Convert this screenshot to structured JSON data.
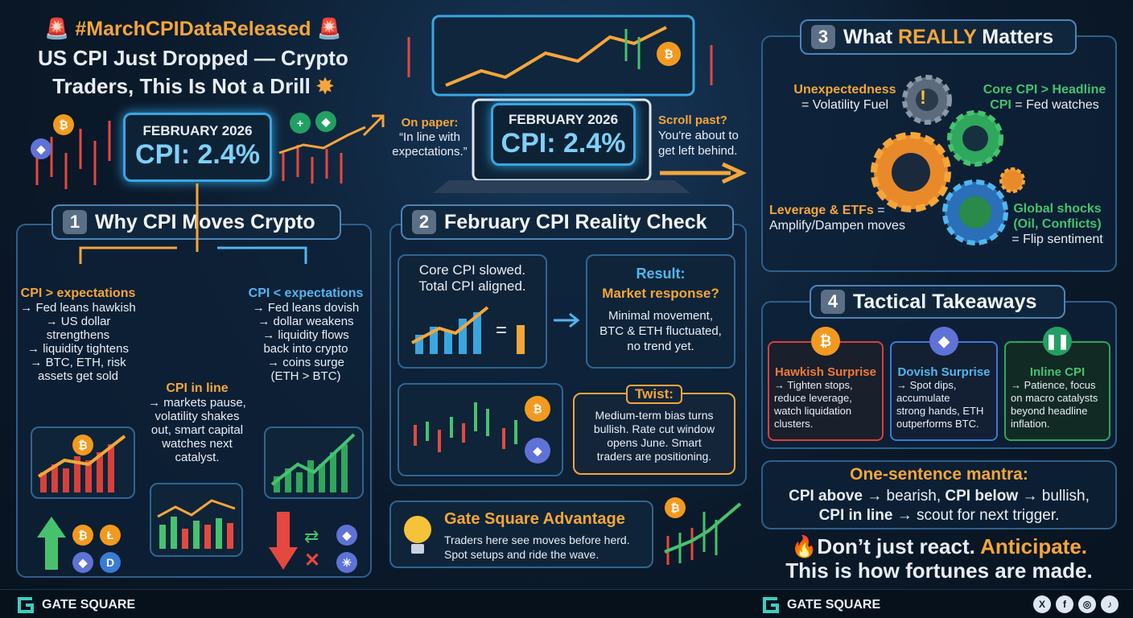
{
  "title": {
    "hashtag": "#MarchCPIDataReleased",
    "line1": "US CPI Just Dropped — Crypto",
    "line2": "Traders, This Is Not a Drill"
  },
  "cpi_box": {
    "month": "FEBRUARY 2026",
    "value": "CPI: 2.4%"
  },
  "hero": {
    "on_paper_label": "On paper:",
    "on_paper_text1": "“In line with",
    "on_paper_text2": "expectations.”",
    "month": "FEBRUARY 2026",
    "value": "CPI: 2.4%",
    "scroll_label": "Scroll past?",
    "scroll_text1": "You're about to",
    "scroll_text2": "get left behind."
  },
  "s1": {
    "num": "1",
    "title": "Why CPI Moves Crypto",
    "left": {
      "head": "CPI > expectations",
      "lines": [
        "→ Fed leans hawkish",
        "→ US dollar",
        "strengthens",
        "→ liquidity tightens",
        "→ BTC, ETH, risk",
        "assets get sold"
      ]
    },
    "mid": {
      "head": "CPI in line",
      "lines": [
        "→ markets pause,",
        "volatility shakes",
        "out, smart capital",
        "watches next",
        "catalyst."
      ]
    },
    "right": {
      "head": "CPI < expectations",
      "lines": [
        "→ Fed leans dovish",
        "→ dollar weakens",
        "→ liquidity flows",
        "back into crypto",
        "→ coins surge",
        "(ETH > BTC)"
      ]
    }
  },
  "s2": {
    "num": "2",
    "title": "February CPI Reality Check",
    "core1": "Core CPI slowed.",
    "core2": "Total CPI aligned.",
    "result_title": "Result:",
    "result_sub": "Market response?",
    "result_lines": [
      "Minimal movement,",
      "BTC & ETH fluctuated,",
      "no trend yet."
    ],
    "twist_title": "Twist:",
    "twist_lines": [
      "Medium-term bias turns",
      "bullish. Rate cut window",
      "opens June. Smart",
      "traders are positioning."
    ],
    "gate_title": "Gate Square Advantage",
    "gate_lines": [
      "Traders here see moves before herd.",
      "Spot setups and ride the wave."
    ]
  },
  "s3": {
    "num": "3",
    "title_a": "What ",
    "title_b": "REALLY",
    "title_c": " Matters",
    "unexp_head": "Unexpectedness",
    "unexp_text": "= Volatility Fuel",
    "core_head1": "Core CPI > Headline",
    "core_head2": "CPI",
    "core_text": " = Fed watches",
    "lev_head": "Leverage & ETFs",
    "lev_text1": " =",
    "lev_text2": "Amplify/Dampen moves",
    "glob_head1": "Global shocks",
    "glob_head2": "(Oil, Conflicts)",
    "glob_text": "= Flip sentiment"
  },
  "s4": {
    "num": "4",
    "title": "Tactical Takeaways",
    "hawk": {
      "head": "Hawkish Surprise",
      "lines": [
        "→ Tighten stops,",
        "reduce leverage,",
        "watch liquidation",
        "clusters."
      ]
    },
    "dove": {
      "head": "Dovish Surprise",
      "lines": [
        "→ Spot dips,",
        "accumulate",
        "strong hands, ETH",
        "outperforms BTC."
      ]
    },
    "inline": {
      "head": "Inline CPI",
      "lines": [
        "→ Patience, focus",
        "on macro catalysts",
        "beyond headline",
        "inflation."
      ]
    }
  },
  "mantra": {
    "title": "One-sentence mantra:",
    "l1a": "CPI above",
    "l1b": " → bearish, ",
    "l1c": "CPI below",
    "l1d": " → bullish,",
    "l2a": "CPI in line",
    "l2b": " → scout for next trigger."
  },
  "closing": {
    "a": "Don’t just react. ",
    "b": "Anticipate.",
    "c": "This is how fortunes are made."
  },
  "footer": {
    "brand_left": "GATE SQUARE",
    "brand_right": "GATE SQUARE"
  },
  "colors": {
    "orange": "#f5a63a",
    "blue": "#52b6f0",
    "green": "#46c26f",
    "red": "#e5483f"
  }
}
